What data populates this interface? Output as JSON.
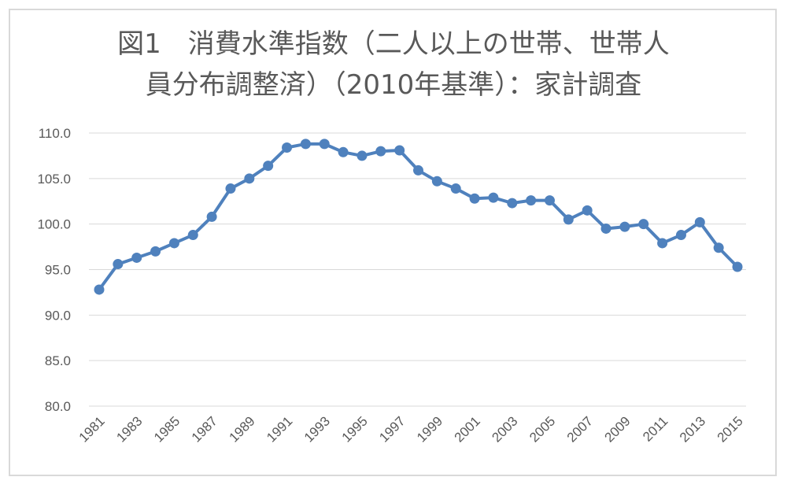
{
  "chart_data": {
    "type": "line",
    "title": "図1　消費水準指数（二人以上の世帯、世帯人\n員分布調整済）（2010年基準）：家計調査",
    "xlabel": "",
    "ylabel": "",
    "ylim": [
      80,
      110
    ],
    "yticks": [
      "80.0",
      "85.0",
      "90.0",
      "95.0",
      "100.0",
      "105.0",
      "110.0"
    ],
    "x": [
      1981,
      1982,
      1983,
      1984,
      1985,
      1986,
      1987,
      1988,
      1989,
      1990,
      1991,
      1992,
      1993,
      1994,
      1995,
      1996,
      1997,
      1998,
      1999,
      2000,
      2001,
      2002,
      2003,
      2004,
      2005,
      2006,
      2007,
      2008,
      2009,
      2010,
      2011,
      2012,
      2013,
      2014,
      2015
    ],
    "xtick_labels": [
      "1981",
      "1983",
      "1985",
      "1987",
      "1989",
      "1991",
      "1993",
      "1995",
      "1997",
      "1999",
      "2001",
      "2003",
      "2005",
      "2007",
      "2009",
      "2011",
      "2013",
      "2015"
    ],
    "series": [
      {
        "values": [
          92.8,
          95.6,
          96.3,
          97.0,
          97.9,
          98.8,
          100.8,
          103.9,
          105.0,
          106.4,
          108.4,
          108.8,
          108.8,
          107.9,
          107.5,
          108.0,
          108.1,
          105.9,
          104.7,
          103.9,
          102.8,
          102.9,
          102.3,
          102.6,
          102.6,
          100.5,
          101.5,
          99.5,
          99.7,
          100.0,
          97.9,
          98.8,
          100.2,
          97.4,
          95.3
        ]
      }
    ],
    "grid": true,
    "legend": "none",
    "colors": {
      "line": "#4f81bd",
      "grid": "#d9d9d9",
      "text": "#595959"
    }
  }
}
